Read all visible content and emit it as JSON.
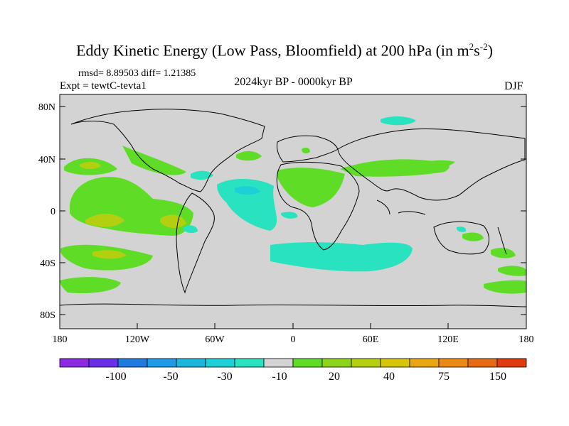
{
  "title": {
    "main": "Eddy Kinetic Energy (Low Pass, Bloomfield) at 200 hPa (in m",
    "sup1": "2",
    "mid": "s",
    "sup2": "-2",
    "end": ")"
  },
  "stats": "rmsd= 8.89503 diff= 1.21385",
  "experiment": "Expt = tewtC-tevta1",
  "period": "2024kyr BP - 0000kyr BP",
  "season": "DJF",
  "axes": {
    "lat_labels": [
      "80N",
      "40N",
      "0",
      "40S",
      "80S"
    ],
    "lon_labels": [
      "180",
      "120W",
      "60W",
      "0",
      "60E",
      "120E",
      "180"
    ]
  },
  "colorbar": {
    "labels": [
      "-100",
      "-50",
      "-30",
      "-10",
      "20",
      "40",
      "75",
      "150"
    ],
    "colors": [
      "#8a2be2",
      "#6a30e8",
      "#1f7be0",
      "#1e9ae6",
      "#1ab6dc",
      "#1dcfd6",
      "#28e2c0",
      "#d3d3d3",
      "#5fdd26",
      "#8cd41c",
      "#b4cf10",
      "#d8c50a",
      "#e8a712",
      "#ea8a14",
      "#e66a12",
      "#e03a0e"
    ]
  },
  "map_colors": {
    "land_ocean": "#d3d3d3",
    "positive_light": "#5fdd26",
    "positive_mid": "#b4cf10",
    "negative_light": "#28e2c0",
    "negative_mid": "#1dcfd6"
  }
}
